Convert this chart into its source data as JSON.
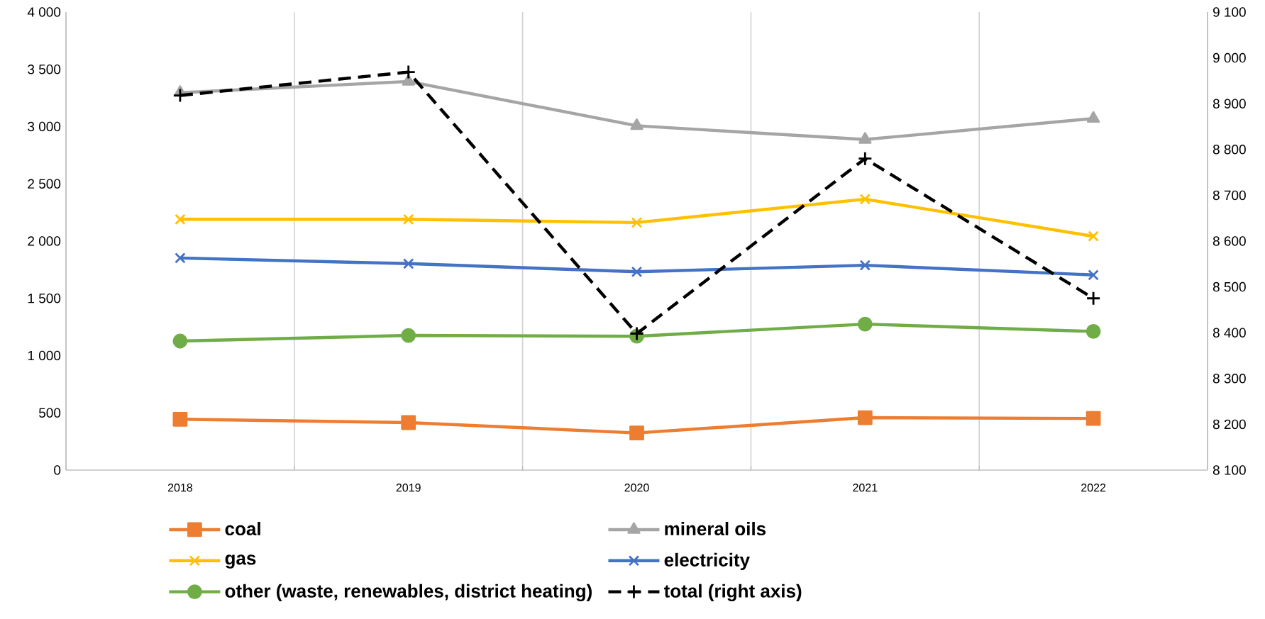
{
  "chart_data": {
    "type": "line",
    "categories": [
      "2018",
      "2019",
      "2020",
      "2021",
      "2022"
    ],
    "series": [
      {
        "name": "coal",
        "color": "#ed7d31",
        "marker": "square",
        "values": [
          444,
          415,
          324,
          458,
          451
        ]
      },
      {
        "name": "mineral oils",
        "color": "#a5a5a5",
        "marker": "triangle",
        "values": [
          3296,
          3394,
          3007,
          2887,
          3070
        ]
      },
      {
        "name": "gas",
        "color": "#ffc000",
        "marker": "cross",
        "values": [
          2190,
          2190,
          2162,
          2366,
          2042
        ]
      },
      {
        "name": "electricity",
        "color": "#4472c4",
        "marker": "cross",
        "values": [
          1852,
          1803,
          1732,
          1789,
          1704
        ]
      },
      {
        "name": "other (waste, renewables, district heating)",
        "color": "#70ad47",
        "marker": "circle",
        "values": [
          1127,
          1176,
          1169,
          1275,
          1211
        ]
      },
      {
        "name": "total (right axis)",
        "color": "#000000",
        "marker": "plus",
        "line_style": "dashed",
        "axis": "y2",
        "values": [
          8918,
          8969,
          8398,
          8780,
          8475
        ]
      }
    ],
    "ylim": [
      0,
      4000
    ],
    "yticks": [
      {
        "value": 0,
        "label": "0"
      },
      {
        "value": 500,
        "label": "500"
      },
      {
        "value": 1000,
        "label": "1 000"
      },
      {
        "value": 1500,
        "label": "1 500"
      },
      {
        "value": 2000,
        "label": "2 000"
      },
      {
        "value": 2500,
        "label": "2 500"
      },
      {
        "value": 3000,
        "label": "3 000"
      },
      {
        "value": 3500,
        "label": "3 500"
      },
      {
        "value": 4000,
        "label": "4 000"
      }
    ],
    "y2lim": [
      8100,
      9100
    ],
    "y2ticks": [
      {
        "value": 8100,
        "label": "8 100"
      },
      {
        "value": 8200,
        "label": "8 200"
      },
      {
        "value": 8300,
        "label": "8 300"
      },
      {
        "value": 8400,
        "label": "8 400"
      },
      {
        "value": 8500,
        "label": "8 500"
      },
      {
        "value": 8600,
        "label": "8 600"
      },
      {
        "value": 8700,
        "label": "8 700"
      },
      {
        "value": 8800,
        "label": "8 800"
      },
      {
        "value": 8900,
        "label": "8 900"
      },
      {
        "value": 9000,
        "label": "9 000"
      },
      {
        "value": 9100,
        "label": "9 100"
      }
    ],
    "grid": "x",
    "legend": "bottom"
  }
}
